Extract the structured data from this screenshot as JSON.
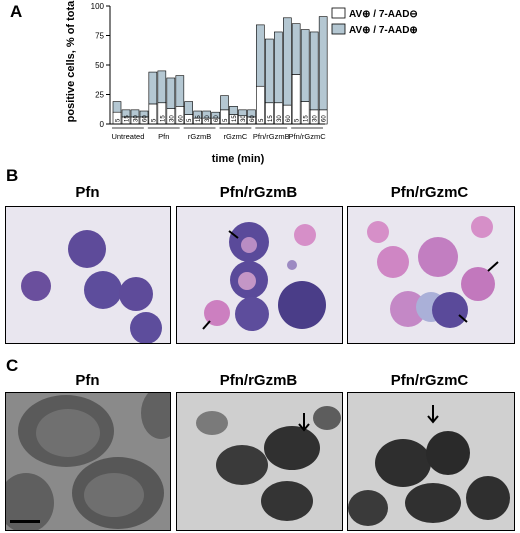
{
  "panels": {
    "a": {
      "letter": "A"
    },
    "b": {
      "letter": "B",
      "titles": [
        "Pfn",
        "Pfn/rGzmB",
        "Pfn/rGzmC"
      ]
    },
    "c": {
      "letter": "C",
      "titles": [
        "Pfn",
        "Pfn/rGzmB",
        "Pfn/rGzmC"
      ]
    }
  },
  "chart_data": {
    "type": "bar",
    "stacked": true,
    "ylabel": "positive cells, % of total",
    "xlabel": "time (min)",
    "ylim": [
      0,
      100
    ],
    "yticks": [
      0,
      25,
      50,
      75,
      100
    ],
    "groups": [
      "Untreated",
      "Pfn",
      "rGzmB",
      "rGzmC",
      "Pfn/rGzmB",
      "Pfn/rGzmC"
    ],
    "times": [
      "5",
      "15",
      "30",
      "60"
    ],
    "legend_position": "top-right",
    "series": [
      {
        "name": "AV⊕ / 7-AAD⊖",
        "color": "#ffffff",
        "values": [
          [
            10,
            6,
            6,
            6
          ],
          [
            17,
            18,
            13,
            15
          ],
          [
            8,
            5,
            5,
            5
          ],
          [
            12,
            8,
            7,
            6
          ],
          [
            32,
            18,
            18,
            16
          ],
          [
            42,
            19,
            12,
            12
          ]
        ]
      },
      {
        "name": "AV⊕ / 7-AAD⊕",
        "color": "#b4c7d2",
        "values": [
          [
            9,
            6,
            6,
            5
          ],
          [
            27,
            27,
            26,
            26
          ],
          [
            11,
            6,
            6,
            5
          ],
          [
            12,
            7,
            5,
            6
          ],
          [
            52,
            54,
            60,
            74
          ],
          [
            43,
            61,
            66,
            79
          ]
        ]
      }
    ]
  }
}
